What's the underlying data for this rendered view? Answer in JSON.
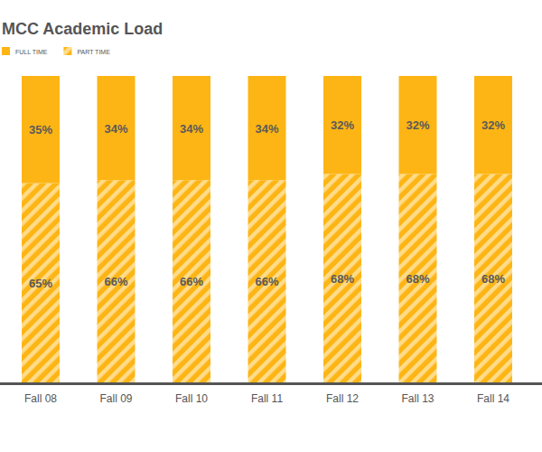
{
  "chart_data": {
    "type": "bar",
    "title": "MCC Academic Load",
    "categories": [
      "Fall 08",
      "Fall 09",
      "Fall 10",
      "Fall 11",
      "Fall 12",
      "Fall 13",
      "Fall 14"
    ],
    "series": [
      {
        "name": "FULL TIME",
        "color": "#fdb515",
        "values": [
          35,
          34,
          34,
          34,
          32,
          32,
          32
        ],
        "value_labels": [
          "35%",
          "34%",
          "34%",
          "34%",
          "32%",
          "32%",
          "32%"
        ]
      },
      {
        "name": "PART TIME",
        "color": "#fdb515",
        "values": [
          65,
          66,
          66,
          66,
          68,
          68,
          68
        ],
        "value_labels": [
          "65%",
          "66%",
          "66%",
          "66%",
          "68%",
          "68%",
          "68%"
        ]
      }
    ],
    "ylim": [
      0,
      100
    ],
    "stacked": true,
    "data_labels": true,
    "tick_labels": "x",
    "legend": "top-left"
  }
}
